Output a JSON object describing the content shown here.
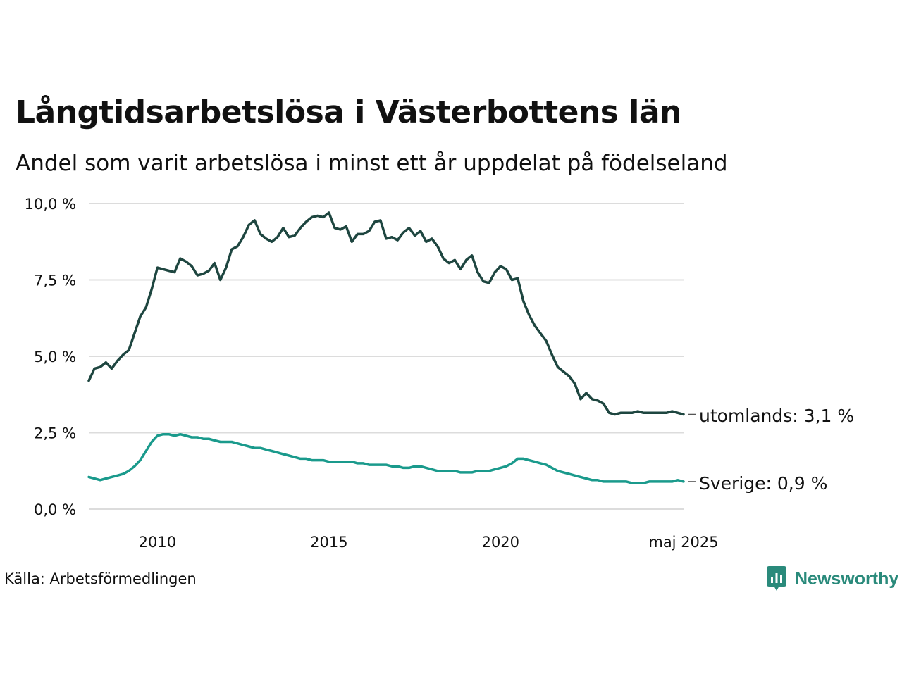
{
  "title": "Långtidsarbetslösa i Västerbottens län",
  "subtitle": "Andel som varit arbetslösa i minst ett år uppdelat på födelseland",
  "source": "Källa: Arbetsförmedlingen",
  "brand": {
    "name": "Newsworthy",
    "icon": "newsworthy-logo-icon",
    "color": "#2a8a7b"
  },
  "chart_data": {
    "type": "line",
    "x_start": "2008-01",
    "x_end": "2025-05",
    "x_ticks": [
      {
        "x": "2010-01",
        "label": "2010"
      },
      {
        "x": "2015-01",
        "label": "2015"
      },
      {
        "x": "2020-01",
        "label": "2020"
      },
      {
        "x": "2025-05",
        "label": "maj 2025"
      }
    ],
    "ylim": [
      0,
      10
    ],
    "y_ticks": [
      {
        "value": 0,
        "label": "0,0 %"
      },
      {
        "value": 2.5,
        "label": "2,5 %"
      },
      {
        "value": 5,
        "label": "5,0 %"
      },
      {
        "value": 7.5,
        "label": "7,5 %"
      },
      {
        "value": 10,
        "label": "10,0 %"
      }
    ],
    "grid": true,
    "series": [
      {
        "name": "utomlands",
        "end_label": "utomlands: 3,1 %",
        "color": "#1e4640",
        "points": [
          [
            "2008-01",
            4.2
          ],
          [
            "2008-03",
            4.6
          ],
          [
            "2008-05",
            4.65
          ],
          [
            "2008-07",
            4.8
          ],
          [
            "2008-09",
            4.6
          ],
          [
            "2008-11",
            4.85
          ],
          [
            "2009-01",
            5.05
          ],
          [
            "2009-03",
            5.2
          ],
          [
            "2009-05",
            5.75
          ],
          [
            "2009-07",
            6.3
          ],
          [
            "2009-09",
            6.6
          ],
          [
            "2009-11",
            7.2
          ],
          [
            "2010-01",
            7.9
          ],
          [
            "2010-03",
            7.85
          ],
          [
            "2010-05",
            7.8
          ],
          [
            "2010-07",
            7.75
          ],
          [
            "2010-09",
            8.2
          ],
          [
            "2010-11",
            8.1
          ],
          [
            "2011-01",
            7.95
          ],
          [
            "2011-03",
            7.65
          ],
          [
            "2011-05",
            7.7
          ],
          [
            "2011-07",
            7.8
          ],
          [
            "2011-09",
            8.05
          ],
          [
            "2011-11",
            7.5
          ],
          [
            "2012-01",
            7.9
          ],
          [
            "2012-03",
            8.5
          ],
          [
            "2012-05",
            8.6
          ],
          [
            "2012-07",
            8.9
          ],
          [
            "2012-09",
            9.3
          ],
          [
            "2012-11",
            9.45
          ],
          [
            "2013-01",
            9.0
          ],
          [
            "2013-03",
            8.85
          ],
          [
            "2013-05",
            8.75
          ],
          [
            "2013-07",
            8.9
          ],
          [
            "2013-09",
            9.2
          ],
          [
            "2013-11",
            8.9
          ],
          [
            "2014-01",
            8.95
          ],
          [
            "2014-03",
            9.2
          ],
          [
            "2014-05",
            9.4
          ],
          [
            "2014-07",
            9.55
          ],
          [
            "2014-09",
            9.6
          ],
          [
            "2014-11",
            9.55
          ],
          [
            "2015-01",
            9.7
          ],
          [
            "2015-03",
            9.2
          ],
          [
            "2015-05",
            9.15
          ],
          [
            "2015-07",
            9.25
          ],
          [
            "2015-09",
            8.75
          ],
          [
            "2015-11",
            9.0
          ],
          [
            "2016-01",
            9.0
          ],
          [
            "2016-03",
            9.1
          ],
          [
            "2016-05",
            9.4
          ],
          [
            "2016-07",
            9.45
          ],
          [
            "2016-09",
            8.85
          ],
          [
            "2016-11",
            8.9
          ],
          [
            "2017-01",
            8.8
          ],
          [
            "2017-03",
            9.05
          ],
          [
            "2017-05",
            9.2
          ],
          [
            "2017-07",
            8.95
          ],
          [
            "2017-09",
            9.1
          ],
          [
            "2017-11",
            8.75
          ],
          [
            "2018-01",
            8.85
          ],
          [
            "2018-03",
            8.6
          ],
          [
            "2018-05",
            8.2
          ],
          [
            "2018-07",
            8.05
          ],
          [
            "2018-09",
            8.15
          ],
          [
            "2018-11",
            7.85
          ],
          [
            "2019-01",
            8.15
          ],
          [
            "2019-03",
            8.3
          ],
          [
            "2019-05",
            7.75
          ],
          [
            "2019-07",
            7.45
          ],
          [
            "2019-09",
            7.4
          ],
          [
            "2019-11",
            7.75
          ],
          [
            "2020-01",
            7.95
          ],
          [
            "2020-03",
            7.85
          ],
          [
            "2020-05",
            7.5
          ],
          [
            "2020-07",
            7.55
          ],
          [
            "2020-09",
            6.8
          ],
          [
            "2020-11",
            6.35
          ],
          [
            "2021-01",
            6.0
          ],
          [
            "2021-03",
            5.75
          ],
          [
            "2021-05",
            5.5
          ],
          [
            "2021-07",
            5.05
          ],
          [
            "2021-09",
            4.65
          ],
          [
            "2021-11",
            4.5
          ],
          [
            "2022-01",
            4.35
          ],
          [
            "2022-03",
            4.1
          ],
          [
            "2022-05",
            3.6
          ],
          [
            "2022-07",
            3.8
          ],
          [
            "2022-09",
            3.6
          ],
          [
            "2022-11",
            3.55
          ],
          [
            "2023-01",
            3.45
          ],
          [
            "2023-03",
            3.15
          ],
          [
            "2023-05",
            3.1
          ],
          [
            "2023-07",
            3.15
          ],
          [
            "2023-09",
            3.15
          ],
          [
            "2023-11",
            3.15
          ],
          [
            "2024-01",
            3.2
          ],
          [
            "2024-03",
            3.15
          ],
          [
            "2024-05",
            3.15
          ],
          [
            "2024-07",
            3.15
          ],
          [
            "2024-09",
            3.15
          ],
          [
            "2024-11",
            3.15
          ],
          [
            "2025-01",
            3.2
          ],
          [
            "2025-03",
            3.15
          ],
          [
            "2025-05",
            3.1
          ]
        ]
      },
      {
        "name": "Sverige",
        "end_label": "Sverige: 0,9 %",
        "color": "#1a9a8c",
        "points": [
          [
            "2008-01",
            1.05
          ],
          [
            "2008-03",
            1.0
          ],
          [
            "2008-05",
            0.95
          ],
          [
            "2008-07",
            1.0
          ],
          [
            "2008-09",
            1.05
          ],
          [
            "2008-11",
            1.1
          ],
          [
            "2009-01",
            1.15
          ],
          [
            "2009-03",
            1.25
          ],
          [
            "2009-05",
            1.4
          ],
          [
            "2009-07",
            1.6
          ],
          [
            "2009-09",
            1.9
          ],
          [
            "2009-11",
            2.2
          ],
          [
            "2010-01",
            2.4
          ],
          [
            "2010-03",
            2.45
          ],
          [
            "2010-05",
            2.45
          ],
          [
            "2010-07",
            2.4
          ],
          [
            "2010-09",
            2.45
          ],
          [
            "2010-11",
            2.4
          ],
          [
            "2011-01",
            2.35
          ],
          [
            "2011-03",
            2.35
          ],
          [
            "2011-05",
            2.3
          ],
          [
            "2011-07",
            2.3
          ],
          [
            "2011-09",
            2.25
          ],
          [
            "2011-11",
            2.2
          ],
          [
            "2012-01",
            2.2
          ],
          [
            "2012-03",
            2.2
          ],
          [
            "2012-05",
            2.15
          ],
          [
            "2012-07",
            2.1
          ],
          [
            "2012-09",
            2.05
          ],
          [
            "2012-11",
            2.0
          ],
          [
            "2013-01",
            2.0
          ],
          [
            "2013-03",
            1.95
          ],
          [
            "2013-05",
            1.9
          ],
          [
            "2013-07",
            1.85
          ],
          [
            "2013-09",
            1.8
          ],
          [
            "2013-11",
            1.75
          ],
          [
            "2014-01",
            1.7
          ],
          [
            "2014-03",
            1.65
          ],
          [
            "2014-05",
            1.65
          ],
          [
            "2014-07",
            1.6
          ],
          [
            "2014-09",
            1.6
          ],
          [
            "2014-11",
            1.6
          ],
          [
            "2015-01",
            1.55
          ],
          [
            "2015-03",
            1.55
          ],
          [
            "2015-05",
            1.55
          ],
          [
            "2015-07",
            1.55
          ],
          [
            "2015-09",
            1.55
          ],
          [
            "2015-11",
            1.5
          ],
          [
            "2016-01",
            1.5
          ],
          [
            "2016-03",
            1.45
          ],
          [
            "2016-05",
            1.45
          ],
          [
            "2016-07",
            1.45
          ],
          [
            "2016-09",
            1.45
          ],
          [
            "2016-11",
            1.4
          ],
          [
            "2017-01",
            1.4
          ],
          [
            "2017-03",
            1.35
          ],
          [
            "2017-05",
            1.35
          ],
          [
            "2017-07",
            1.4
          ],
          [
            "2017-09",
            1.4
          ],
          [
            "2017-11",
            1.35
          ],
          [
            "2018-01",
            1.3
          ],
          [
            "2018-03",
            1.25
          ],
          [
            "2018-05",
            1.25
          ],
          [
            "2018-07",
            1.25
          ],
          [
            "2018-09",
            1.25
          ],
          [
            "2018-11",
            1.2
          ],
          [
            "2019-01",
            1.2
          ],
          [
            "2019-03",
            1.2
          ],
          [
            "2019-05",
            1.25
          ],
          [
            "2019-07",
            1.25
          ],
          [
            "2019-09",
            1.25
          ],
          [
            "2019-11",
            1.3
          ],
          [
            "2020-01",
            1.35
          ],
          [
            "2020-03",
            1.4
          ],
          [
            "2020-05",
            1.5
          ],
          [
            "2020-07",
            1.65
          ],
          [
            "2020-09",
            1.65
          ],
          [
            "2020-11",
            1.6
          ],
          [
            "2021-01",
            1.55
          ],
          [
            "2021-03",
            1.5
          ],
          [
            "2021-05",
            1.45
          ],
          [
            "2021-07",
            1.35
          ],
          [
            "2021-09",
            1.25
          ],
          [
            "2021-11",
            1.2
          ],
          [
            "2022-01",
            1.15
          ],
          [
            "2022-03",
            1.1
          ],
          [
            "2022-05",
            1.05
          ],
          [
            "2022-07",
            1.0
          ],
          [
            "2022-09",
            0.95
          ],
          [
            "2022-11",
            0.95
          ],
          [
            "2023-01",
            0.9
          ],
          [
            "2023-03",
            0.9
          ],
          [
            "2023-05",
            0.9
          ],
          [
            "2023-07",
            0.9
          ],
          [
            "2023-09",
            0.9
          ],
          [
            "2023-11",
            0.85
          ],
          [
            "2024-01",
            0.85
          ],
          [
            "2024-03",
            0.85
          ],
          [
            "2024-05",
            0.9
          ],
          [
            "2024-07",
            0.9
          ],
          [
            "2024-09",
            0.9
          ],
          [
            "2024-11",
            0.9
          ],
          [
            "2025-01",
            0.9
          ],
          [
            "2025-03",
            0.95
          ],
          [
            "2025-05",
            0.9
          ]
        ]
      }
    ]
  }
}
